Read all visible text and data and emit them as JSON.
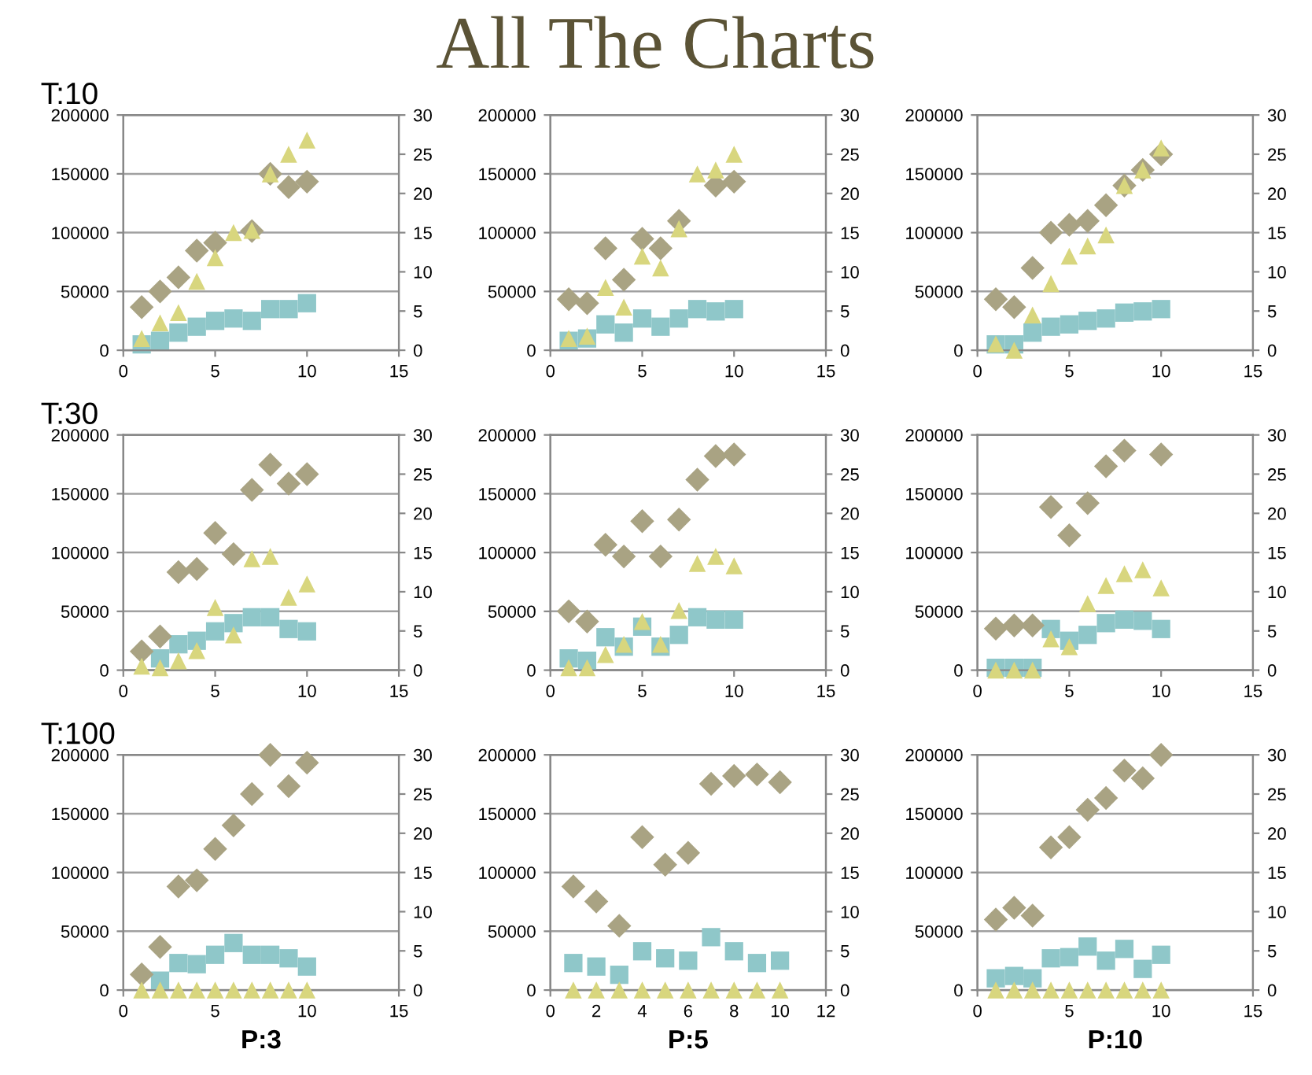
{
  "chart_data": [
    {
      "type": "scatter",
      "title": "T:10",
      "annotations": [
        "All The Charts"
      ],
      "x": [
        1,
        2,
        3,
        4,
        5,
        6,
        7,
        8,
        9,
        10
      ],
      "xlim": [
        0,
        15
      ],
      "xticks": [
        0,
        5,
        10,
        15
      ],
      "ylim": [
        0,
        200000
      ],
      "yticks": [
        0,
        50000,
        100000,
        150000,
        200000
      ],
      "y2lim": [
        0,
        30
      ],
      "y2ticks": [
        0,
        5,
        10,
        15,
        20,
        25,
        30
      ],
      "grid": "y",
      "series": [
        {
          "color": "#8fc7c9",
          "marker": "square",
          "values": [
            5000,
            8000,
            15000,
            20000,
            25000,
            27000,
            25000,
            35000,
            35000,
            40000
          ]
        },
        {
          "color": "#a9a383",
          "marker": "diamond",
          "axis": "y2",
          "values": [
            5.5,
            7.5,
            9.3,
            12.7,
            13.7,
            null,
            15.2,
            22.5,
            20.8,
            21.5
          ]
        },
        {
          "color": "#d8d67e",
          "marker": "triangle",
          "axis": "y2",
          "values": [
            1.5,
            3.5,
            4.8,
            8.8,
            11.8,
            15,
            15.3,
            22.5,
            25,
            26.8
          ]
        }
      ]
    },
    {
      "type": "scatter",
      "x": [
        1,
        2,
        3,
        4,
        5,
        6,
        7,
        8,
        9,
        10
      ],
      "xlim": [
        0,
        15
      ],
      "xticks": [
        0,
        5,
        10,
        15
      ],
      "ylim": [
        0,
        200000
      ],
      "yticks": [
        0,
        50000,
        100000,
        150000,
        200000
      ],
      "y2lim": [
        0,
        30
      ],
      "y2ticks": [
        0,
        5,
        10,
        15,
        20,
        25,
        30
      ],
      "grid": "y",
      "series": [
        {
          "color": "#8fc7c9",
          "marker": "square",
          "values": [
            8000,
            10000,
            22000,
            15000,
            27000,
            20000,
            27000,
            35000,
            33000,
            35000
          ]
        },
        {
          "color": "#a9a383",
          "marker": "diamond",
          "axis": "y2",
          "values": [
            6.5,
            6,
            13,
            9,
            14.2,
            13,
            16.5,
            null,
            21,
            21.5
          ]
        },
        {
          "color": "#d8d67e",
          "marker": "triangle",
          "axis": "y2",
          "values": [
            1.5,
            1.8,
            8,
            5.5,
            12,
            10.5,
            15.5,
            22.5,
            23,
            25
          ]
        }
      ]
    },
    {
      "type": "scatter",
      "x": [
        1,
        2,
        3,
        4,
        5,
        6,
        7,
        8,
        9,
        10
      ],
      "xlim": [
        0,
        15
      ],
      "xticks": [
        0,
        5,
        10,
        15
      ],
      "ylim": [
        0,
        200000
      ],
      "yticks": [
        0,
        50000,
        100000,
        150000,
        200000
      ],
      "y2lim": [
        0,
        30
      ],
      "y2ticks": [
        0,
        5,
        10,
        15,
        20,
        25,
        30
      ],
      "grid": "y",
      "series": [
        {
          "color": "#8fc7c9",
          "marker": "square",
          "values": [
            5000,
            5000,
            15000,
            20000,
            22000,
            25000,
            27000,
            32000,
            33000,
            35000
          ]
        },
        {
          "color": "#a9a383",
          "marker": "diamond",
          "axis": "y2",
          "values": [
            6.5,
            5.5,
            10.5,
            15,
            16,
            16.5,
            18.5,
            21,
            23,
            25
          ]
        },
        {
          "color": "#d8d67e",
          "marker": "triangle",
          "axis": "y2",
          "values": [
            0.8,
            0,
            4.5,
            8.5,
            12,
            13.3,
            14.7,
            21,
            23,
            25.8
          ]
        }
      ]
    },
    {
      "type": "scatter",
      "title": "T:30",
      "x": [
        1,
        2,
        3,
        4,
        5,
        6,
        7,
        8,
        9,
        10
      ],
      "xlim": [
        0,
        15
      ],
      "xticks": [
        0,
        5,
        10,
        15
      ],
      "ylim": [
        0,
        200000
      ],
      "yticks": [
        0,
        50000,
        100000,
        150000,
        200000
      ],
      "y2lim": [
        0,
        30
      ],
      "y2ticks": [
        0,
        5,
        10,
        15,
        20,
        25,
        30
      ],
      "grid": "y",
      "series": [
        {
          "color": "#8fc7c9",
          "marker": "square",
          "values": [
            null,
            10000,
            22000,
            25000,
            33000,
            40000,
            45000,
            45000,
            35000,
            33000
          ]
        },
        {
          "color": "#a9a383",
          "marker": "diamond",
          "axis": "y2",
          "values": [
            2.4,
            4.3,
            12.5,
            12.9,
            17.5,
            14.8,
            23,
            26.2,
            23.8,
            25
          ]
        },
        {
          "color": "#d8d67e",
          "marker": "triangle",
          "axis": "y2",
          "values": [
            0.5,
            0.3,
            1.2,
            2.5,
            8,
            4.5,
            14.2,
            14.5,
            9.3,
            11
          ]
        }
      ]
    },
    {
      "type": "scatter",
      "x": [
        1,
        2,
        3,
        4,
        5,
        6,
        7,
        8,
        9,
        10
      ],
      "xlim": [
        0,
        15
      ],
      "xticks": [
        0,
        5,
        10,
        15
      ],
      "ylim": [
        0,
        200000
      ],
      "yticks": [
        0,
        50000,
        100000,
        150000,
        200000
      ],
      "y2lim": [
        0,
        30
      ],
      "y2ticks": [
        0,
        5,
        10,
        15,
        20,
        25,
        30
      ],
      "grid": "y",
      "series": [
        {
          "color": "#8fc7c9",
          "marker": "square",
          "values": [
            10000,
            8000,
            28000,
            20000,
            37000,
            20000,
            30000,
            45000,
            43000,
            43000
          ]
        },
        {
          "color": "#a9a383",
          "marker": "diamond",
          "axis": "y2",
          "values": [
            7.5,
            6.2,
            16,
            14.5,
            19,
            14.5,
            19.2,
            24.3,
            27.3,
            27.5
          ]
        },
        {
          "color": "#d8d67e",
          "marker": "triangle",
          "axis": "y2",
          "values": [
            0.3,
            0.3,
            2,
            3.3,
            6.2,
            3.3,
            7.6,
            13.6,
            14.5,
            13.3
          ]
        }
      ]
    },
    {
      "type": "scatter",
      "x": [
        1,
        2,
        3,
        4,
        5,
        6,
        7,
        8,
        9,
        10
      ],
      "xlim": [
        0,
        15
      ],
      "xticks": [
        0,
        5,
        10,
        15
      ],
      "ylim": [
        0,
        200000
      ],
      "yticks": [
        0,
        50000,
        100000,
        150000,
        200000
      ],
      "y2lim": [
        0,
        30
      ],
      "y2ticks": [
        0,
        5,
        10,
        15,
        20,
        25,
        30
      ],
      "grid": "y",
      "series": [
        {
          "color": "#8fc7c9",
          "marker": "square",
          "values": [
            2000,
            2000,
            2000,
            35000,
            25000,
            30000,
            40000,
            43000,
            42000,
            35000
          ]
        },
        {
          "color": "#a9a383",
          "marker": "diamond",
          "axis": "y2",
          "values": [
            5.3,
            5.7,
            5.7,
            20.8,
            17.2,
            21.3,
            26,
            28,
            null,
            27.5
          ]
        },
        {
          "color": "#d8d67e",
          "marker": "triangle",
          "axis": "y2",
          "values": [
            0,
            0,
            0,
            4,
            3,
            8.5,
            10.8,
            12.3,
            12.8,
            10.5
          ]
        }
      ]
    },
    {
      "type": "scatter",
      "title": "T:100",
      "xlabel": "P:3",
      "x": [
        1,
        2,
        3,
        4,
        5,
        6,
        7,
        8,
        9,
        10
      ],
      "xlim": [
        0,
        15
      ],
      "xticks": [
        0,
        5,
        10,
        15
      ],
      "ylim": [
        0,
        200000
      ],
      "yticks": [
        0,
        50000,
        100000,
        150000,
        200000
      ],
      "y2lim": [
        0,
        30
      ],
      "y2ticks": [
        0,
        5,
        10,
        15,
        20,
        25,
        30
      ],
      "grid": "y",
      "series": [
        {
          "color": "#8fc7c9",
          "marker": "square",
          "values": [
            null,
            8000,
            23000,
            22000,
            30000,
            40000,
            30000,
            30000,
            27000,
            20000
          ]
        },
        {
          "color": "#a9a383",
          "marker": "diamond",
          "axis": "y2",
          "values": [
            2,
            5.5,
            13.2,
            14,
            18,
            21,
            25,
            30,
            26,
            29
          ]
        },
        {
          "color": "#d8d67e",
          "marker": "triangle",
          "axis": "y2",
          "values": [
            0,
            0,
            0,
            0,
            0,
            0,
            0,
            0,
            0,
            0
          ]
        }
      ]
    },
    {
      "type": "scatter",
      "xlabel": "P:5",
      "x": [
        1,
        2,
        3,
        4,
        5,
        6,
        7,
        8,
        9,
        10
      ],
      "xlim": [
        0,
        12
      ],
      "xticks": [
        0,
        2,
        4,
        6,
        8,
        10,
        12
      ],
      "ylim": [
        0,
        200000
      ],
      "yticks": [
        0,
        50000,
        100000,
        150000,
        200000
      ],
      "y2lim": [
        0,
        30
      ],
      "y2ticks": [
        0,
        5,
        10,
        15,
        20,
        25,
        30
      ],
      "grid": "y",
      "series": [
        {
          "color": "#8fc7c9",
          "marker": "square",
          "values": [
            23000,
            20000,
            13000,
            33000,
            27000,
            25000,
            45000,
            33000,
            23000,
            25000
          ]
        },
        {
          "color": "#a9a383",
          "marker": "diamond",
          "axis": "y2",
          "values": [
            13.2,
            11.3,
            8.2,
            19.5,
            16,
            17.5,
            26.3,
            27.3,
            27.5,
            26.5
          ]
        },
        {
          "color": "#d8d67e",
          "marker": "triangle",
          "axis": "y2",
          "values": [
            0,
            0,
            0,
            0,
            0,
            0,
            0,
            0,
            0,
            0
          ]
        }
      ]
    },
    {
      "type": "scatter",
      "xlabel": "P:10",
      "x": [
        1,
        2,
        3,
        4,
        5,
        6,
        7,
        8,
        9,
        10
      ],
      "xlim": [
        0,
        15
      ],
      "xticks": [
        0,
        5,
        10,
        15
      ],
      "ylim": [
        0,
        200000
      ],
      "yticks": [
        0,
        50000,
        100000,
        150000,
        200000
      ],
      "y2lim": [
        0,
        30
      ],
      "y2ticks": [
        0,
        5,
        10,
        15,
        20,
        25,
        30
      ],
      "grid": "y",
      "series": [
        {
          "color": "#8fc7c9",
          "marker": "square",
          "values": [
            10000,
            12000,
            10000,
            27000,
            28000,
            37000,
            25000,
            35000,
            18000,
            30000
          ]
        },
        {
          "color": "#a9a383",
          "marker": "diamond",
          "axis": "y2",
          "values": [
            9,
            10.5,
            9.5,
            18.2,
            19.5,
            23,
            24.5,
            28,
            27,
            30
          ]
        },
        {
          "color": "#d8d67e",
          "marker": "triangle",
          "axis": "y2",
          "values": [
            0,
            0,
            0,
            0,
            0,
            0,
            0,
            0,
            0,
            0
          ]
        }
      ]
    }
  ]
}
